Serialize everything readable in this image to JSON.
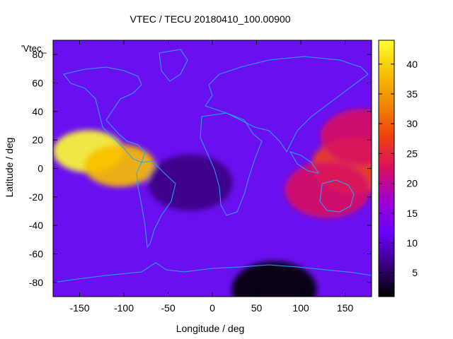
{
  "chart_data": {
    "type": "heatmap",
    "title": "VTEC / TECU 20180410_100.00900",
    "xlabel": "Longitude / deg",
    "ylabel": "Latitude / deg",
    "key_label": "'Vtec_",
    "xlim": [
      -180,
      180
    ],
    "ylim": [
      -90,
      90
    ],
    "x_ticks": [
      -150,
      -100,
      -50,
      0,
      50,
      100,
      150
    ],
    "y_ticks": [
      -80,
      -60,
      -40,
      -20,
      0,
      20,
      40,
      60,
      80
    ],
    "colorbar": {
      "range": [
        1,
        44
      ],
      "ticks": [
        5,
        10,
        15,
        20,
        25,
        30,
        35,
        40
      ],
      "palette": [
        "#000000",
        "#3a0080",
        "#6a00ff",
        "#a000d0",
        "#d81060",
        "#f04010",
        "#f08800",
        "#f8c000",
        "#ffff30"
      ]
    },
    "features": [
      {
        "lon": -140,
        "lat": 12,
        "vtec": 43
      },
      {
        "lon": -105,
        "lat": 2,
        "vtec": 38
      },
      {
        "lon": 160,
        "lat": 2,
        "vtec": 26
      },
      {
        "lon": 170,
        "lat": 22,
        "vtec": 24
      },
      {
        "lon": 130,
        "lat": -15,
        "vtec": 21
      },
      {
        "lon": 70,
        "lat": -85,
        "vtec": 3
      },
      {
        "lon": -25,
        "lat": -10,
        "vtec": 4
      }
    ],
    "grid": false,
    "overlay": "coastlines"
  }
}
